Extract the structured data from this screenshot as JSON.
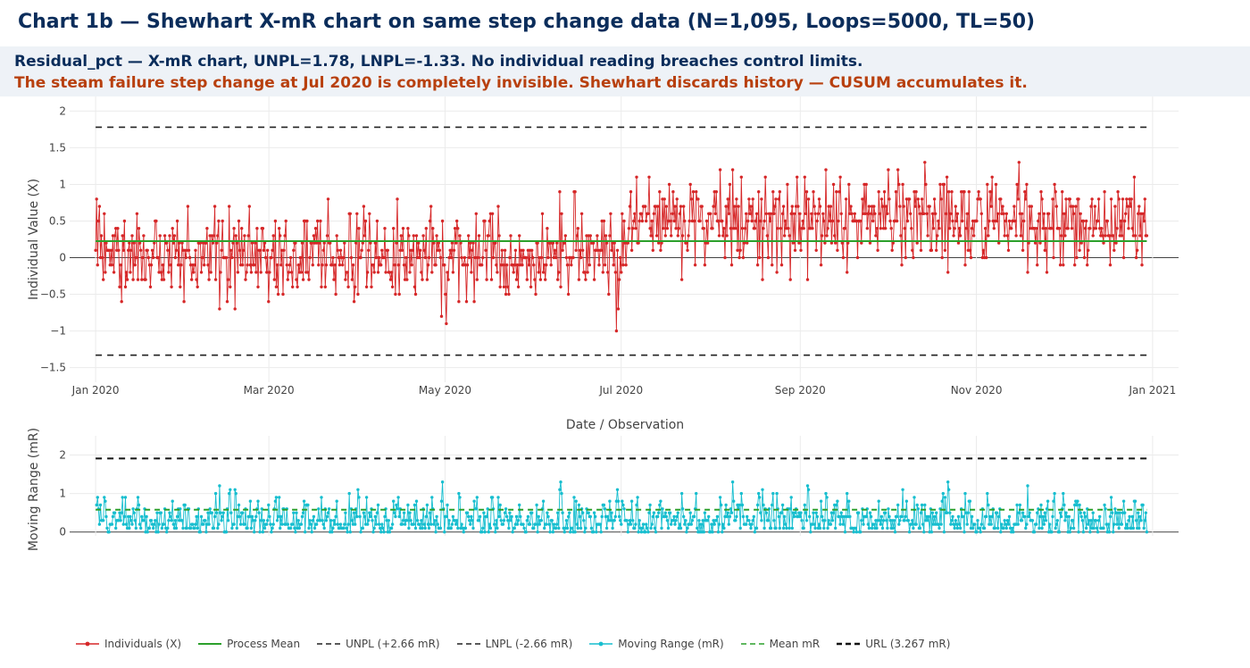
{
  "header": {
    "title": "Chart 1b — Shewhart X-mR chart on same step change data  (N=1,095, Loops=5000, TL=50)",
    "line1": "Residual_pct — X-mR chart, UNPL=1.78, LNPL=-1.33. No individual reading breaches control limits.",
    "line2": "The steam failure step change at Jul 2020 is completely invisible. Shewhart discards history — CUSUM accumulates it."
  },
  "colors": {
    "individuals": "#d62728",
    "mean": "#2ca02c",
    "limit": "#222222",
    "mr": "#17becf",
    "mr_mean": "#2ca02c",
    "title": "#0b2d5b",
    "warning": "#b8400e"
  },
  "chart_data": [
    {
      "type": "line",
      "name": "individuals-chart",
      "xlabel": "Date / Observation",
      "ylabel": "Individual Value (X)",
      "x_range": [
        "2019-12-23",
        "2021-01-10"
      ],
      "ylim": [
        -1.7,
        2.2
      ],
      "x_ticks": [
        {
          "date": "2020-01-01",
          "label": "Jan 2020"
        },
        {
          "date": "2020-03-01",
          "label": "Mar 2020"
        },
        {
          "date": "2020-05-01",
          "label": "May 2020"
        },
        {
          "date": "2020-07-01",
          "label": "Jul 2020"
        },
        {
          "date": "2020-09-01",
          "label": "Sep 2020"
        },
        {
          "date": "2020-11-01",
          "label": "Nov 2020"
        },
        {
          "date": "2021-01-01",
          "label": "Jan 2021"
        }
      ],
      "y_ticks": [
        {
          "value": 2,
          "label": "2"
        },
        {
          "value": 1.5,
          "label": "1.5"
        },
        {
          "value": 1,
          "label": "1"
        },
        {
          "value": 0.5,
          "label": "0.5"
        },
        {
          "value": 0,
          "label": "0"
        },
        {
          "value": -0.5,
          "label": "−0.5"
        },
        {
          "value": -1,
          "label": "−1"
        },
        {
          "value": -1.5,
          "label": "−1.5"
        }
      ],
      "start_date": "2020-01-01",
      "end_date": "2020-12-30",
      "process_mean": 0.225,
      "unpl": 1.78,
      "lnpl": -1.33,
      "step_date": "2020-07-01",
      "level_before": 0.02,
      "level_after": 0.48,
      "noise_sd": 0.42,
      "n_points": 1095,
      "grid": true
    },
    {
      "type": "line",
      "name": "moving-range-chart",
      "ylabel": "Moving Range (mR)",
      "ylim": [
        -0.1,
        2.5
      ],
      "y_ticks": [
        {
          "value": 2,
          "label": "2"
        },
        {
          "value": 1,
          "label": "1"
        },
        {
          "value": 0,
          "label": "0"
        }
      ],
      "mean_mr": 0.58,
      "url": 1.91,
      "grid": true
    }
  ],
  "legend": {
    "placement": "bottom",
    "items": [
      {
        "label": "Individuals (X)",
        "kind": "line-marker",
        "color": "#d62728"
      },
      {
        "label": "Process Mean",
        "kind": "solid",
        "color": "#2ca02c"
      },
      {
        "label": "UNPL (+2.66 mR)",
        "kind": "dash",
        "color": "#222222"
      },
      {
        "label": "LNPL (-2.66 mR)",
        "kind": "dash",
        "color": "#222222"
      },
      {
        "label": "Moving Range (mR)",
        "kind": "line-marker",
        "color": "#17becf"
      },
      {
        "label": "Mean mR",
        "kind": "dash",
        "color": "#2ca02c"
      },
      {
        "label": "URL (3.267 mR)",
        "kind": "dash-bold",
        "color": "#111111"
      }
    ]
  }
}
